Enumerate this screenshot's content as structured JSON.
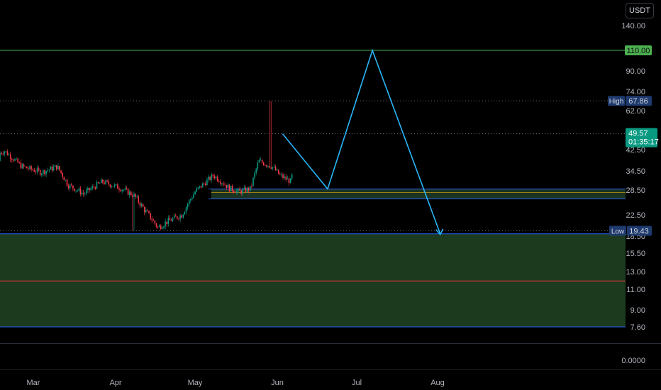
{
  "currency_button": "USDT",
  "price_axis": {
    "ticks": [
      "140.00",
      "90.00",
      "74.00",
      "62.00",
      "42.50",
      "34.50",
      "28.50",
      "22.50",
      "18.50",
      "15.50",
      "13.00",
      "11.00",
      "9.00",
      "7.60",
      "0.0000"
    ],
    "target_label": "110.00",
    "high_tag": "High",
    "high_value": "67.86",
    "low_tag": "Low",
    "low_value": "19.43",
    "last_price": "49.57",
    "countdown": "01:35:17",
    "colors": {
      "target": "#4caf50",
      "last": "#089981",
      "badge": "#1e3a6e"
    }
  },
  "time_axis": {
    "labels": [
      "Mar",
      "Apr",
      "May",
      "Jun",
      "Jul",
      "Aug"
    ]
  },
  "chart_data": {
    "type": "candlestick",
    "log_scale": true,
    "ylim": [
      7.6,
      140
    ],
    "months": [
      "Mar",
      "Apr",
      "May",
      "Jun",
      "Jul",
      "Aug"
    ],
    "start_price": 38.0,
    "high": 67.86,
    "low": 19.43,
    "last": 49.57,
    "levels": [
      {
        "name": "target",
        "value": 110,
        "color": "#4caf50"
      },
      {
        "name": "support-zone-top",
        "value": 28.8,
        "color": "#2962ff"
      },
      {
        "name": "support-zone-bottom",
        "value": 26.2,
        "color": "#2962ff"
      },
      {
        "name": "demand-zone-top",
        "value": 18.9,
        "color": "#2962ff"
      },
      {
        "name": "demand-zone-mid",
        "value": 11.9,
        "color": "#f23645"
      },
      {
        "name": "demand-zone-bottom",
        "value": 7.6,
        "color": "#2962ff"
      }
    ],
    "projection": [
      {
        "date": "Jun 3",
        "price": 49.5
      },
      {
        "date": "Jun 20",
        "price": 28.8
      },
      {
        "date": "Jul 7",
        "price": 110
      },
      {
        "date": "Aug 2",
        "price": 18.9
      }
    ],
    "colors": {
      "up": "#089981",
      "down": "#f23645",
      "projection": "#29b6f6",
      "zone": "#1b3a1e"
    }
  }
}
